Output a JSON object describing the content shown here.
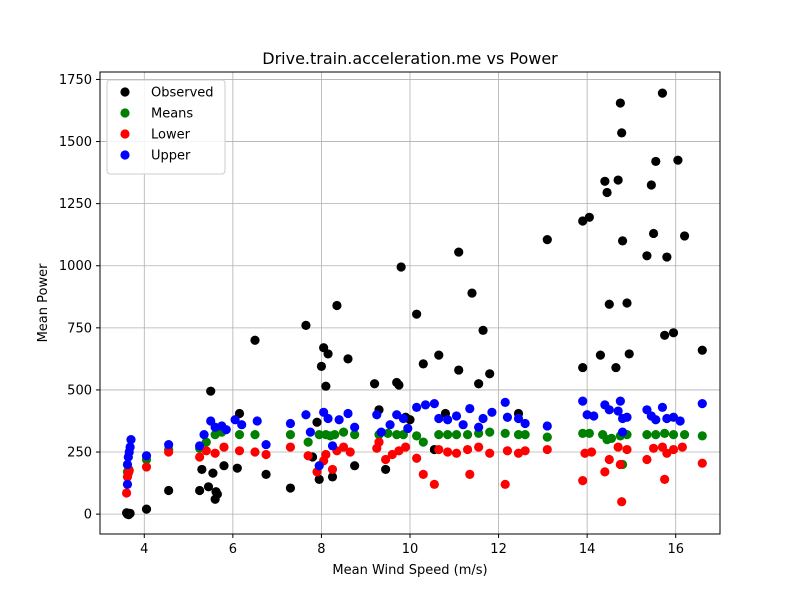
{
  "chart_data": {
    "type": "scatter",
    "title": "Drive.train.acceleration.me vs Power",
    "xlabel": "Mean Wind Speed (m/s)",
    "ylabel": "Mean Power",
    "xlim": [
      3.0,
      17.0
    ],
    "ylim": [
      -80,
      1780
    ],
    "xticks": [
      4,
      6,
      8,
      10,
      12,
      14,
      16
    ],
    "yticks": [
      0,
      250,
      500,
      750,
      1000,
      1250,
      1500,
      1750
    ],
    "grid": true,
    "legend_position": "top-left",
    "series": [
      {
        "name": "Observed",
        "color": "#000000",
        "points": [
          [
            3.6,
            5
          ],
          [
            3.62,
            0
          ],
          [
            3.65,
            -2
          ],
          [
            3.68,
            3
          ],
          [
            4.05,
            20
          ],
          [
            4.55,
            95
          ],
          [
            5.25,
            95
          ],
          [
            5.3,
            180
          ],
          [
            5.45,
            110
          ],
          [
            5.5,
            495
          ],
          [
            5.55,
            165
          ],
          [
            5.6,
            60
          ],
          [
            5.62,
            90
          ],
          [
            5.65,
            80
          ],
          [
            5.8,
            195
          ],
          [
            6.1,
            185
          ],
          [
            6.15,
            405
          ],
          [
            6.5,
            700
          ],
          [
            6.75,
            160
          ],
          [
            7.3,
            105
          ],
          [
            7.65,
            760
          ],
          [
            7.8,
            230
          ],
          [
            7.9,
            370
          ],
          [
            7.95,
            140
          ],
          [
            8.0,
            595
          ],
          [
            8.05,
            670
          ],
          [
            8.1,
            515
          ],
          [
            8.15,
            645
          ],
          [
            8.25,
            150
          ],
          [
            8.35,
            840
          ],
          [
            8.6,
            625
          ],
          [
            8.75,
            195
          ],
          [
            9.2,
            525
          ],
          [
            9.3,
            420
          ],
          [
            9.45,
            180
          ],
          [
            9.7,
            530
          ],
          [
            9.75,
            520
          ],
          [
            9.8,
            995
          ],
          [
            9.9,
            390
          ],
          [
            10.15,
            805
          ],
          [
            10.3,
            605
          ],
          [
            10.55,
            260
          ],
          [
            10.65,
            640
          ],
          [
            10.8,
            405
          ],
          [
            11.1,
            1055
          ],
          [
            11.1,
            580
          ],
          [
            11.4,
            890
          ],
          [
            11.55,
            525
          ],
          [
            11.65,
            740
          ],
          [
            11.8,
            565
          ],
          [
            12.45,
            405
          ],
          [
            13.1,
            1105
          ],
          [
            13.9,
            1180
          ],
          [
            14.05,
            1195
          ],
          [
            14.3,
            640
          ],
          [
            14.4,
            1340
          ],
          [
            14.45,
            1295
          ],
          [
            14.5,
            845
          ],
          [
            14.65,
            590
          ],
          [
            14.7,
            1345
          ],
          [
            14.75,
            1655
          ],
          [
            14.78,
            1535
          ],
          [
            14.8,
            1100
          ],
          [
            14.9,
            850
          ],
          [
            14.95,
            645
          ],
          [
            15.35,
            1040
          ],
          [
            15.45,
            1325
          ],
          [
            15.5,
            1130
          ],
          [
            15.55,
            1420
          ],
          [
            15.7,
            1695
          ],
          [
            15.75,
            720
          ],
          [
            15.8,
            1035
          ],
          [
            15.95,
            730
          ],
          [
            16.05,
            1425
          ],
          [
            16.2,
            1120
          ],
          [
            16.6,
            660
          ],
          [
            13.9,
            590
          ],
          [
            10.0,
            380
          ]
        ]
      },
      {
        "name": "Means",
        "color": "#008000",
        "points": [
          [
            3.62,
            170
          ],
          [
            3.65,
            180
          ],
          [
            4.05,
            220
          ],
          [
            4.55,
            260
          ],
          [
            5.25,
            265
          ],
          [
            5.4,
            290
          ],
          [
            5.6,
            320
          ],
          [
            5.75,
            330
          ],
          [
            6.15,
            320
          ],
          [
            6.5,
            320
          ],
          [
            7.3,
            320
          ],
          [
            7.7,
            290
          ],
          [
            7.95,
            320
          ],
          [
            8.1,
            320
          ],
          [
            8.2,
            315
          ],
          [
            8.3,
            320
          ],
          [
            8.5,
            330
          ],
          [
            8.75,
            320
          ],
          [
            9.3,
            320
          ],
          [
            9.5,
            325
          ],
          [
            9.7,
            320
          ],
          [
            9.85,
            320
          ],
          [
            10.15,
            315
          ],
          [
            10.3,
            290
          ],
          [
            10.65,
            320
          ],
          [
            10.85,
            320
          ],
          [
            11.05,
            320
          ],
          [
            11.3,
            320
          ],
          [
            11.55,
            325
          ],
          [
            11.8,
            330
          ],
          [
            12.15,
            325
          ],
          [
            12.45,
            320
          ],
          [
            12.6,
            320
          ],
          [
            13.1,
            310
          ],
          [
            13.9,
            325
          ],
          [
            14.05,
            325
          ],
          [
            14.35,
            320
          ],
          [
            14.45,
            300
          ],
          [
            14.55,
            305
          ],
          [
            14.75,
            315
          ],
          [
            14.9,
            320
          ],
          [
            15.35,
            320
          ],
          [
            15.55,
            320
          ],
          [
            15.75,
            325
          ],
          [
            15.95,
            320
          ],
          [
            16.2,
            320
          ],
          [
            16.6,
            315
          ],
          [
            14.8,
            200
          ]
        ]
      },
      {
        "name": "Lower",
        "color": "#ff0000",
        "points": [
          [
            3.6,
            85
          ],
          [
            3.62,
            150
          ],
          [
            3.64,
            165
          ],
          [
            3.66,
            175
          ],
          [
            4.05,
            190
          ],
          [
            4.55,
            250
          ],
          [
            5.25,
            230
          ],
          [
            5.4,
            255
          ],
          [
            5.6,
            245
          ],
          [
            5.8,
            270
          ],
          [
            6.15,
            255
          ],
          [
            6.5,
            250
          ],
          [
            6.75,
            240
          ],
          [
            7.3,
            270
          ],
          [
            7.7,
            235
          ],
          [
            7.9,
            170
          ],
          [
            8.05,
            215
          ],
          [
            8.1,
            240
          ],
          [
            8.25,
            180
          ],
          [
            8.35,
            255
          ],
          [
            8.5,
            270
          ],
          [
            8.65,
            250
          ],
          [
            9.25,
            265
          ],
          [
            9.45,
            220
          ],
          [
            9.6,
            240
          ],
          [
            9.75,
            255
          ],
          [
            9.9,
            270
          ],
          [
            10.15,
            225
          ],
          [
            10.3,
            160
          ],
          [
            10.55,
            120
          ],
          [
            10.65,
            260
          ],
          [
            10.85,
            250
          ],
          [
            11.05,
            245
          ],
          [
            11.3,
            260
          ],
          [
            11.35,
            160
          ],
          [
            11.55,
            270
          ],
          [
            11.8,
            245
          ],
          [
            12.15,
            120
          ],
          [
            12.2,
            255
          ],
          [
            12.45,
            245
          ],
          [
            12.6,
            255
          ],
          [
            13.1,
            260
          ],
          [
            13.9,
            135
          ],
          [
            13.95,
            245
          ],
          [
            14.1,
            250
          ],
          [
            14.4,
            170
          ],
          [
            14.5,
            220
          ],
          [
            14.7,
            270
          ],
          [
            14.75,
            200
          ],
          [
            14.78,
            50
          ],
          [
            14.9,
            260
          ],
          [
            15.35,
            220
          ],
          [
            15.5,
            265
          ],
          [
            15.7,
            270
          ],
          [
            15.75,
            140
          ],
          [
            15.8,
            245
          ],
          [
            15.95,
            260
          ],
          [
            16.15,
            270
          ],
          [
            16.6,
            205
          ],
          [
            9.3,
            290
          ]
        ]
      },
      {
        "name": "Upper",
        "color": "#0000ff",
        "points": [
          [
            3.62,
            200
          ],
          [
            3.64,
            230
          ],
          [
            3.66,
            250
          ],
          [
            3.68,
            270
          ],
          [
            3.7,
            300
          ],
          [
            3.62,
            120
          ],
          [
            4.05,
            235
          ],
          [
            4.55,
            280
          ],
          [
            5.25,
            275
          ],
          [
            5.35,
            320
          ],
          [
            5.5,
            375
          ],
          [
            5.6,
            350
          ],
          [
            5.75,
            355
          ],
          [
            5.85,
            340
          ],
          [
            6.05,
            380
          ],
          [
            6.2,
            360
          ],
          [
            6.55,
            375
          ],
          [
            6.75,
            280
          ],
          [
            7.3,
            365
          ],
          [
            7.65,
            400
          ],
          [
            7.75,
            330
          ],
          [
            7.95,
            195
          ],
          [
            8.05,
            410
          ],
          [
            8.15,
            385
          ],
          [
            8.25,
            275
          ],
          [
            8.4,
            380
          ],
          [
            8.6,
            405
          ],
          [
            8.75,
            350
          ],
          [
            9.25,
            400
          ],
          [
            9.35,
            330
          ],
          [
            9.55,
            360
          ],
          [
            9.7,
            400
          ],
          [
            9.85,
            385
          ],
          [
            9.95,
            345
          ],
          [
            10.15,
            430
          ],
          [
            10.35,
            440
          ],
          [
            10.55,
            445
          ],
          [
            10.65,
            385
          ],
          [
            10.85,
            380
          ],
          [
            11.05,
            395
          ],
          [
            11.2,
            360
          ],
          [
            11.35,
            425
          ],
          [
            11.55,
            350
          ],
          [
            11.65,
            385
          ],
          [
            11.85,
            410
          ],
          [
            12.15,
            450
          ],
          [
            12.2,
            390
          ],
          [
            12.45,
            385
          ],
          [
            12.6,
            365
          ],
          [
            13.1,
            355
          ],
          [
            13.9,
            455
          ],
          [
            14.0,
            400
          ],
          [
            14.15,
            395
          ],
          [
            14.4,
            440
          ],
          [
            14.5,
            420
          ],
          [
            14.7,
            415
          ],
          [
            14.75,
            455
          ],
          [
            14.8,
            385
          ],
          [
            14.9,
            390
          ],
          [
            15.35,
            420
          ],
          [
            15.45,
            395
          ],
          [
            15.55,
            380
          ],
          [
            15.7,
            430
          ],
          [
            15.8,
            385
          ],
          [
            15.95,
            390
          ],
          [
            16.1,
            375
          ],
          [
            16.6,
            445
          ],
          [
            14.8,
            330
          ]
        ]
      }
    ]
  }
}
